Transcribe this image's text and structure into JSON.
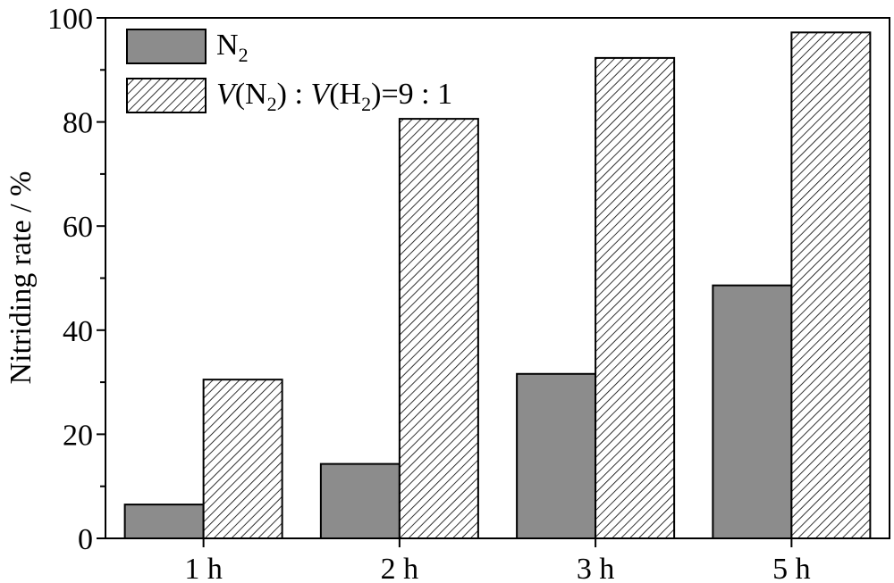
{
  "chart_data": {
    "type": "bar",
    "categories": [
      "1 h",
      "2 h",
      "3 h",
      "5 h"
    ],
    "series": [
      {
        "name": "N2",
        "values": [
          6.5,
          14.3,
          31.6,
          48.6
        ],
        "fill": "#8c8c8c",
        "pattern": "solid"
      },
      {
        "name": "V(N2) : V(H2)=9 : 1",
        "values": [
          30.5,
          80.6,
          92.3,
          97.2
        ],
        "fill": "#ffffff",
        "pattern": "diagonal-hatch"
      }
    ],
    "ylabel": "Nitriding rate / %",
    "xlabel": "",
    "ylim": [
      0,
      100
    ],
    "yticks": [
      0,
      20,
      40,
      60,
      80,
      100
    ],
    "grid": false,
    "legend_position": "top-left",
    "legend": {
      "n2": {
        "main": "N",
        "sub": "2"
      },
      "mix": {
        "p1": "V",
        "p2": "(N",
        "p3": "2",
        "p4": ") : ",
        "p5": "V",
        "p6": "(H",
        "p7": "2",
        "p8": ")=9 : 1"
      }
    }
  }
}
